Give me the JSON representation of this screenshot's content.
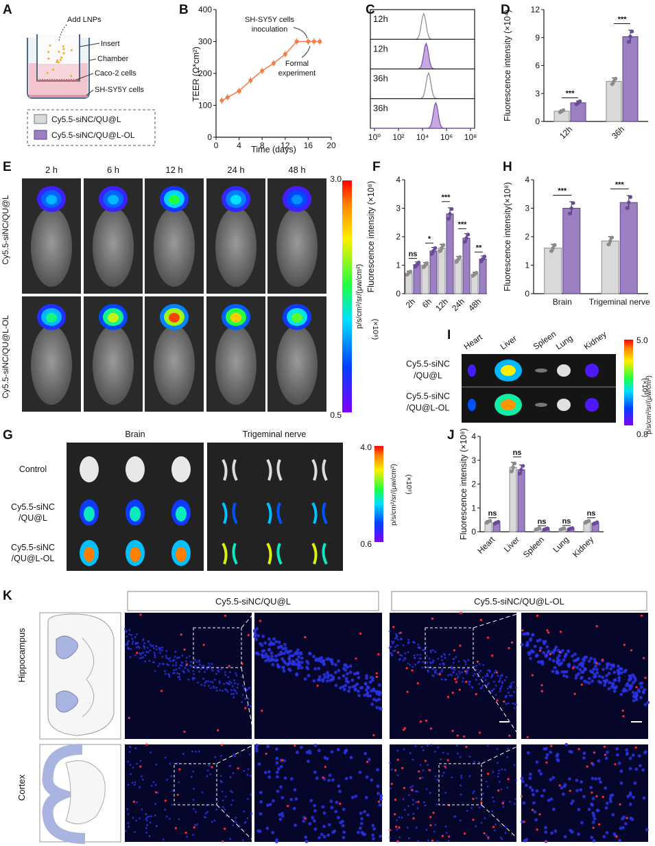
{
  "panel_labels": [
    "A",
    "B",
    "C",
    "D",
    "E",
    "F",
    "G",
    "H",
    "I",
    "J",
    "K"
  ],
  "colors": {
    "ql": "#d9d9d9",
    "qlol": "#9b7fc0",
    "ql_edge": "#8c8c8c",
    "qlol_edge": "#5e3f8e",
    "teer": "#f07f4a",
    "hist_ql": "#ffffff",
    "hist_qlol": "#c5a8e0"
  },
  "panelA": {
    "labels": {
      "add": "Add LNPs",
      "insert": "Insert",
      "chamber": "Chamber",
      "caco": "Caco-2 cells",
      "shsy": "SH-SY5Y cells"
    },
    "legend": [
      {
        "label": "Cy5.5-siNC/QU@L",
        "color": "#d9d9d9"
      },
      {
        "label": "Cy5.5-siNC/QU@L-OL",
        "color": "#9b7fc0"
      }
    ]
  },
  "chart_data": [
    {
      "panel": "B",
      "type": "line",
      "xlabel": "Time (days)",
      "ylabel": "TEER (Ω*cm²)",
      "xlim": [
        0,
        20
      ],
      "ylim": [
        0,
        400
      ],
      "xticks": [
        "0",
        "4",
        "8",
        "12",
        "16",
        "20"
      ],
      "yticks": [
        "0",
        "100",
        "200",
        "300",
        "400"
      ],
      "x": [
        1,
        2,
        4,
        6,
        8,
        10,
        12,
        14,
        16,
        17,
        18
      ],
      "y": [
        115,
        125,
        145,
        178,
        208,
        232,
        260,
        300,
        300,
        300,
        300
      ],
      "annotations": [
        "SH-SY5Y cells inoculation",
        "Formal experiment"
      ]
    },
    {
      "panel": "C",
      "type": "histogram",
      "xticks": [
        "10⁰",
        "10²",
        "10⁴",
        "10⁶",
        "10⁸"
      ],
      "rows": [
        {
          "label": "12h",
          "peak": 4.1,
          "group": "ql"
        },
        {
          "label": "12h",
          "peak": 4.3,
          "group": "qlol"
        },
        {
          "label": "36h",
          "peak": 4.5,
          "group": "ql"
        },
        {
          "label": "36h",
          "peak": 5.1,
          "group": "qlol"
        }
      ]
    },
    {
      "panel": "D",
      "type": "bar",
      "ylabel": "Fluorescence intensity (×10⁴)",
      "categories": [
        "12h",
        "36h"
      ],
      "ylim": [
        0,
        12
      ],
      "yticks": [
        "0",
        "3",
        "6",
        "9",
        "12"
      ],
      "series": [
        {
          "name": "Cy5.5-siNC/QU@L",
          "values": [
            1.1,
            4.3
          ]
        },
        {
          "name": "Cy5.5-siNC/QU@L-OL",
          "values": [
            2.0,
            9.1
          ]
        }
      ],
      "sig": [
        "***",
        "***"
      ]
    },
    {
      "panel": "F",
      "type": "bar",
      "ylabel": "Fluorescence intensity (×10⁸)",
      "categories": [
        "2h",
        "6h",
        "12h",
        "24h",
        "48h"
      ],
      "ylim": [
        0,
        4
      ],
      "yticks": [
        "0",
        "1",
        "2",
        "3",
        "4"
      ],
      "series": [
        {
          "name": "Cy5.5-siNC/QU@L",
          "values": [
            0.72,
            1.0,
            1.6,
            1.2,
            0.68
          ]
        },
        {
          "name": "Cy5.5-siNC/QU@L-OL",
          "values": [
            1.02,
            1.5,
            2.8,
            1.95,
            1.22
          ]
        }
      ],
      "sig": [
        "ns",
        "*",
        "***",
        "***",
        "**"
      ]
    },
    {
      "panel": "H",
      "type": "bar",
      "ylabel": "Fluorescence intensity(×10⁸)",
      "categories": [
        "Brain",
        "Trigeminal nerve"
      ],
      "ylim": [
        0,
        4
      ],
      "yticks": [
        "0",
        "1",
        "2",
        "3",
        "4"
      ],
      "series": [
        {
          "name": "Cy5.5-siNC/QU@L",
          "values": [
            1.6,
            1.85
          ]
        },
        {
          "name": "Cy5.5-siNC/QU@L-OL",
          "values": [
            3.0,
            3.2
          ]
        }
      ],
      "sig": [
        "***",
        "***"
      ]
    },
    {
      "panel": "J",
      "type": "bar",
      "ylabel": "Fluorescence intensity (×10⁸)",
      "categories": [
        "Heart",
        "Liver",
        "Spleen",
        "Lung",
        "Kidney"
      ],
      "ylim": [
        0,
        4
      ],
      "yticks": [
        "0",
        "1",
        "2",
        "3",
        "4"
      ],
      "series": [
        {
          "name": "Cy5.5-siNC/QU@L",
          "values": [
            0.42,
            2.7,
            0.12,
            0.12,
            0.42
          ]
        },
        {
          "name": "Cy5.5-siNC/QU@L-OL",
          "values": [
            0.38,
            2.6,
            0.12,
            0.13,
            0.36
          ]
        }
      ],
      "sig": [
        "ns",
        "ns",
        "ns",
        "ns",
        "ns"
      ]
    }
  ],
  "panelE": {
    "times": [
      "2 h",
      "6 h",
      "12 h",
      "24 h",
      "48 h"
    ],
    "rows": [
      "Cy5.5-siNC/QU@L",
      "Cy5.5-siNC/QU@L-OL"
    ],
    "intensity": [
      [
        0.35,
        0.35,
        0.55,
        0.4,
        0.3
      ],
      [
        0.5,
        0.7,
        0.95,
        0.8,
        0.6
      ]
    ],
    "scale": {
      "max": "3.0",
      "min": "0.5",
      "unit": "p/s/cm²/sr/(μw/cm²)",
      "mult": "(×10⁸)"
    }
  },
  "panelG": {
    "headers": [
      "Brain",
      "Trigeminal nerve"
    ],
    "rows": [
      "Control",
      "Cy5.5-siNC /QU@L",
      "Cy5.5-siNC /QU@L-OL"
    ],
    "row_lines": [
      [
        "Control"
      ],
      [
        "Cy5.5-siNC",
        "/QU@L"
      ],
      [
        "Cy5.5-siNC",
        "/QU@L-OL"
      ]
    ],
    "intensity": [
      0,
      0.45,
      0.9
    ],
    "scale": {
      "max": "4.0",
      "min": "0.6",
      "unit": "p/s/cm²/sr/(μw/cm²)",
      "mult": "(×10⁸)"
    }
  },
  "panelI": {
    "organs": [
      "Heart",
      "Liver",
      "Spleen",
      "Lung",
      "Kidney"
    ],
    "row_lines": [
      [
        "Cy5.5-siNC",
        "/QU@L"
      ],
      [
        "Cy5.5-siNC",
        "/QU@L-OL"
      ]
    ],
    "scale": {
      "max": "5.0",
      "min": "0.8",
      "unit": "p/s/cm²/sr/(μw/cm²)",
      "mult": "(×10⁸)"
    }
  },
  "panelK": {
    "headers": [
      "Cy5.5-siNC/QU@L",
      "Cy5.5-siNC/QU@L-OL"
    ],
    "rows": [
      "Hippocampus",
      "Cortex"
    ]
  }
}
